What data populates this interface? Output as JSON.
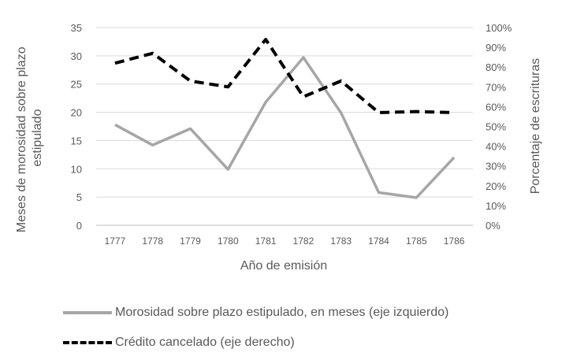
{
  "chart_data": {
    "type": "line",
    "xlabel": "Año de emisión",
    "ylabel_left": "Meses de morosidad sobre plazo estipulado",
    "ylabel_right": "Porcentaje de escrituras",
    "categories": [
      "1777",
      "1778",
      "1779",
      "1780",
      "1781",
      "1782",
      "1783",
      "1784",
      "1785",
      "1786"
    ],
    "left_axis": {
      "min": 0,
      "max": 35,
      "ticks": [
        "0",
        "5",
        "10",
        "15",
        "20",
        "25",
        "30",
        "35"
      ]
    },
    "right_axis": {
      "min": 0,
      "max": 1,
      "ticks": [
        "0%",
        "10%",
        "20%",
        "30%",
        "40%",
        "50%",
        "60%",
        "70%",
        "80%",
        "90%",
        "100%"
      ]
    },
    "grid": true,
    "legend_position": "bottom",
    "series": [
      {
        "name": "Morosidad sobre plazo estipulado, en meses (eje izquierdo)",
        "axis": "left",
        "style": "solid",
        "color": "#a6a6a6",
        "values": [
          17.8,
          14.2,
          17.1,
          9.9,
          21.8,
          29.7,
          19.9,
          5.8,
          4.9,
          12.0
        ]
      },
      {
        "name": "Crédito cancelado (eje derecho)",
        "axis": "right",
        "style": "dashed",
        "color": "#000000",
        "values": [
          0.82,
          0.87,
          0.73,
          0.7,
          0.94,
          0.65,
          0.73,
          0.57,
          0.575,
          0.57
        ]
      }
    ]
  }
}
